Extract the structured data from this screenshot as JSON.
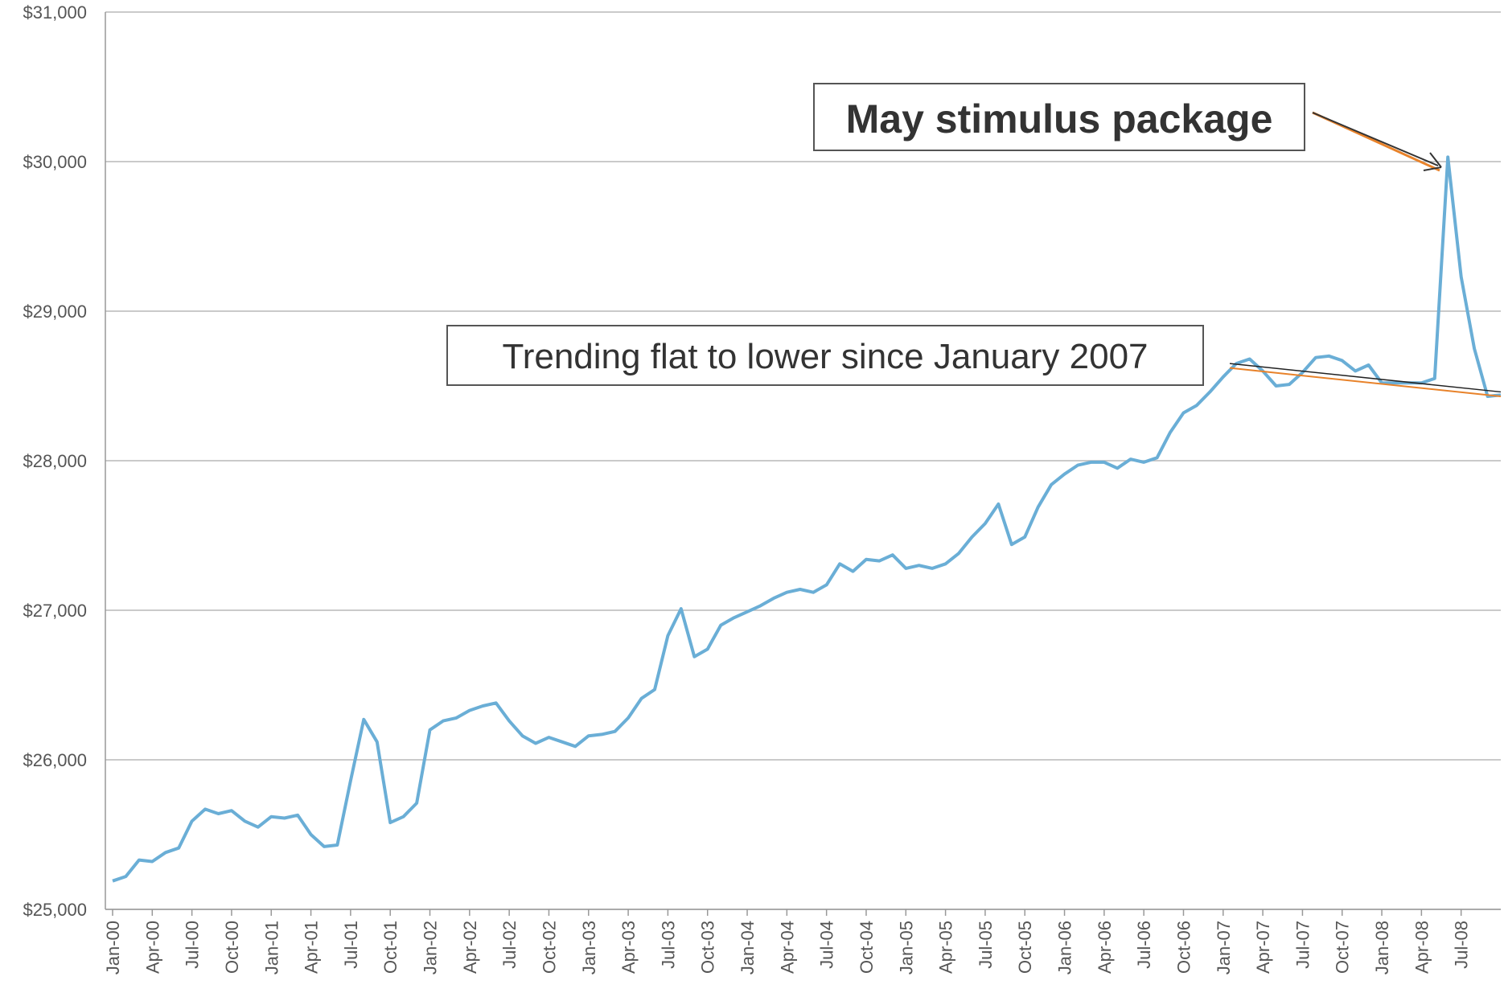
{
  "chart_data": {
    "type": "line",
    "title": "",
    "xlabel": "",
    "ylabel": "",
    "ylim": [
      25000,
      31000
    ],
    "y_ticks": [
      25000,
      26000,
      27000,
      28000,
      29000,
      30000,
      31000
    ],
    "y_tick_labels": [
      "$25,000",
      "$26,000",
      "$27,000",
      "$28,000",
      "$29,000",
      "$30,000",
      "$31,000"
    ],
    "x_tick_labels": [
      "Jan-00",
      "Apr-00",
      "Jul-00",
      "Oct-00",
      "Jan-01",
      "Apr-01",
      "Jul-01",
      "Oct-01",
      "Jan-02",
      "Apr-02",
      "Jul-02",
      "Oct-02",
      "Jan-03",
      "Apr-03",
      "Jul-03",
      "Oct-03",
      "Jan-04",
      "Apr-04",
      "Jul-04",
      "Oct-04",
      "Jan-05",
      "Apr-05",
      "Jul-05",
      "Oct-05",
      "Jan-06",
      "Apr-06",
      "Jul-06",
      "Oct-06",
      "Jan-07",
      "Apr-07",
      "Jul-07",
      "Oct-07",
      "Jan-08",
      "Apr-08",
      "Jul-08"
    ],
    "grid": true,
    "legend": "none",
    "line_color": "#6aaed6",
    "series": [
      {
        "values": [
          25190,
          25220,
          25330,
          25320,
          25380,
          25410,
          25590,
          25670,
          25640,
          25660,
          25590,
          25550,
          25620,
          25610,
          25630,
          25500,
          25420,
          25430,
          25860,
          26270,
          26120,
          25580,
          25620,
          25710,
          26200,
          26260,
          26280,
          26330,
          26360,
          26380,
          26260,
          26160,
          26110,
          26150,
          26120,
          26090,
          26160,
          26170,
          26190,
          26280,
          26410,
          26470,
          26830,
          27010,
          26690,
          26740,
          26900,
          26950,
          26990,
          27030,
          27080,
          27120,
          27140,
          27120,
          27170,
          27310,
          27260,
          27340,
          27330,
          27370,
          27280,
          27300,
          27280,
          27310,
          27380,
          27490,
          27580,
          27710,
          27440,
          27490,
          27690,
          27840,
          27910,
          27970,
          27990,
          27990,
          27950,
          28010,
          27990,
          28020,
          28190,
          28320,
          28370,
          28460,
          28560,
          28650,
          28680,
          28600,
          28500,
          28510,
          28590,
          28690,
          28700,
          28670,
          28600,
          28640,
          28520,
          28520,
          28520,
          28520,
          28550,
          30030,
          29230,
          28750,
          28430,
          28440
        ]
      }
    ],
    "annotations": [
      {
        "text": "May stimulus package"
      },
      {
        "text": "Trending flat to lower since January 2007"
      }
    ]
  }
}
